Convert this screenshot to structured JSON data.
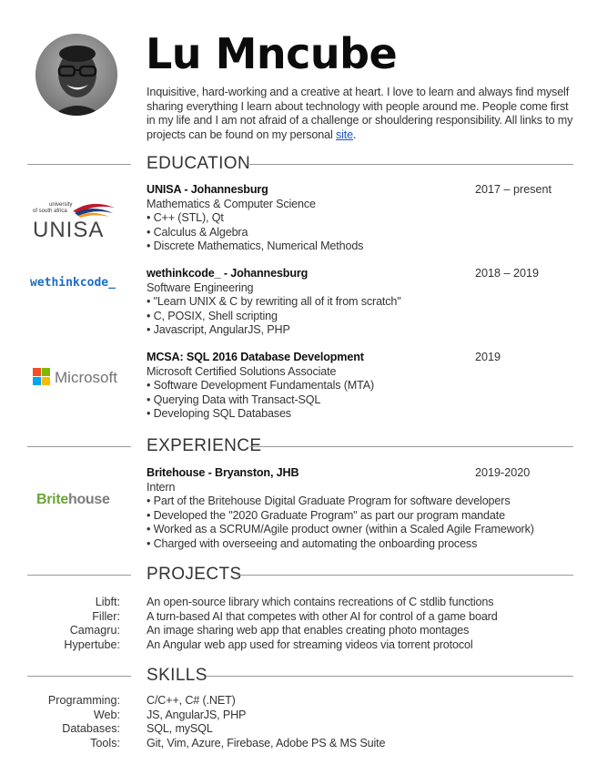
{
  "header": {
    "name": "Lu Mncube",
    "intro": "Inquisitive, hard-working and a creative at heart. I love to learn and always find myself sharing everything I learn about technology with people around me. People come first in my life and I am not afraid of a challenge or shouldering responsibility. All links to my projects can be found on my personal ",
    "site_link": "site",
    "intro_end": "."
  },
  "sections": {
    "education": "EDUCATION",
    "experience": "EXPERIENCE",
    "projects": "PROJECTS",
    "skills": "SKILLS"
  },
  "logos": {
    "unisa_small": "university of south africa",
    "unisa_big": "UNISA",
    "wethinkcode": "wethinkcode_",
    "microsoft": "Microsoft",
    "britehouse_a": "Brite",
    "britehouse_b": "house"
  },
  "education": [
    {
      "title": "UNISA - Johannesburg",
      "date": "2017 – present",
      "subtitle": "Mathematics & Computer Science",
      "bullets": [
        "• C++ (STL), Qt",
        "• Calculus & Algebra",
        "• Discrete Mathematics, Numerical Methods"
      ]
    },
    {
      "title": "wethinkcode_ - Johannesburg",
      "date": "2018 – 2019",
      "subtitle": "Software Engineering",
      "bullets": [
        "• \"Learn UNIX & C by rewriting all of it from scratch\"",
        "• C, POSIX, Shell scripting",
        "• Javascript, AngularJS, PHP"
      ]
    },
    {
      "title": "MCSA: SQL 2016 Database Development",
      "date": "2019",
      "subtitle": "Microsoft Certified Solutions Associate",
      "bullets": [
        "• Software Development Fundamentals (MTA)",
        "• Querying Data with Transact-SQL",
        "• Developing SQL Databases"
      ]
    }
  ],
  "experience": [
    {
      "title": "Britehouse - Bryanston, JHB",
      "date": "2019-2020",
      "subtitle": "Intern",
      "bullets": [
        "• Part of the Britehouse Digital Graduate Program for software developers",
        "• Developed the \"2020 Graduate Program\" as part our program mandate",
        "• Worked as a SCRUM/Agile product owner (within a Scaled Agile Framework)",
        "• Charged with overseeing and automating the onboarding process"
      ]
    }
  ],
  "projects": [
    {
      "name": "Libft:",
      "desc": "An open-source library which contains recreations of C stdlib functions"
    },
    {
      "name": "Filler:",
      "desc": "A turn-based AI that competes with other AI for control of a game board"
    },
    {
      "name": "Camagru:",
      "desc": "An image sharing web app that enables creating photo montages"
    },
    {
      "name": "Hypertube:",
      "desc": "An Angular web app used for streaming videos via torrent protocol"
    }
  ],
  "skills": [
    {
      "name": "Programming:",
      "desc": "C/C++, C# (.NET)"
    },
    {
      "name": "Web:",
      "desc": "JS, AngularJS, PHP"
    },
    {
      "name": "Databases:",
      "desc": "SQL, mySQL"
    },
    {
      "name": "Tools:",
      "desc": "Git, Vim, Azure, Firebase, Adobe PS & MS Suite"
    }
  ]
}
